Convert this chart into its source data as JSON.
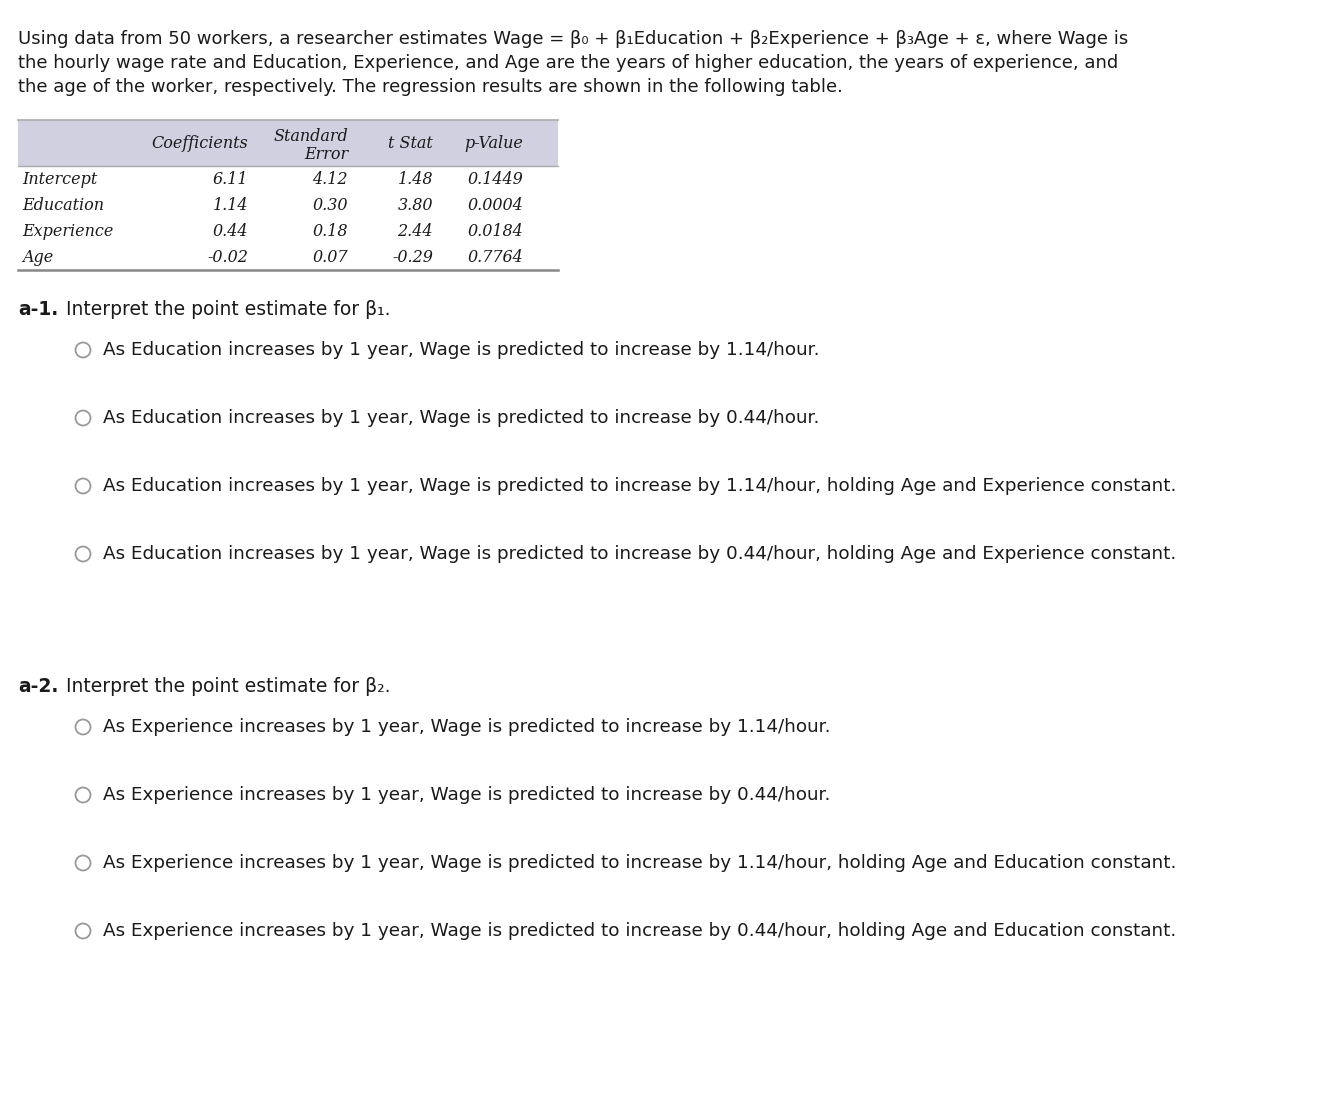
{
  "bg_color": "#ffffff",
  "text_color": "#1a1a1a",
  "intro_line1": "Using data from 50 workers, a researcher estimates Wage = β₀ + β₁Education + β₂Experience + β₃Age + ε, where Wage is",
  "intro_line2": "the hourly wage rate and Education, Experience, and Age are the years of higher education, the years of experience, and",
  "intro_line3": "the age of the worker, respectively. The regression results are shown in the following table.",
  "table_header_bg": "#d0d0e0",
  "table_rows": [
    [
      "Intercept",
      "6.11",
      "4.12",
      "1.48",
      "0.1449"
    ],
    [
      "Education",
      "1.14",
      "0.30",
      "3.80",
      "0.0004"
    ],
    [
      "Experience",
      "0.44",
      "0.18",
      "2.44",
      "0.0184"
    ],
    [
      "Age",
      "-0.02",
      "0.07",
      "-0.29",
      "0.7764"
    ]
  ],
  "a1_label": "a-1.",
  "a1_question": " Interpret the point estimate for β₁.",
  "a1_options": [
    "As Education increases by 1 year, Wage is predicted to increase by 1.14/hour.",
    "As Education increases by 1 year, Wage is predicted to increase by 0.44/hour.",
    "As Education increases by 1 year, Wage is predicted to increase by 1.14/hour, holding Age and Experience constant.",
    "As Education increases by 1 year, Wage is predicted to increase by 0.44/hour, holding Age and Experience constant."
  ],
  "a2_label": "a-2.",
  "a2_question": " Interpret the point estimate for β₂.",
  "a2_options": [
    "As Experience increases by 1 year, Wage is predicted to increase by 1.14/hour.",
    "As Experience increases by 1 year, Wage is predicted to increase by 0.44/hour.",
    "As Experience increases by 1 year, Wage is predicted to increase by 1.14/hour, holding Age and Education constant.",
    "As Experience increases by 1 year, Wage is predicted to increase by 0.44/hour, holding Age and Education constant."
  ],
  "font_size_intro": 13.0,
  "font_size_table_header": 11.5,
  "font_size_table_data": 11.5,
  "font_size_section": 13.5,
  "font_size_option": 13.2,
  "circle_color": "#999999",
  "line_color": "#aaaaaa",
  "bottom_line_color": "#888888"
}
